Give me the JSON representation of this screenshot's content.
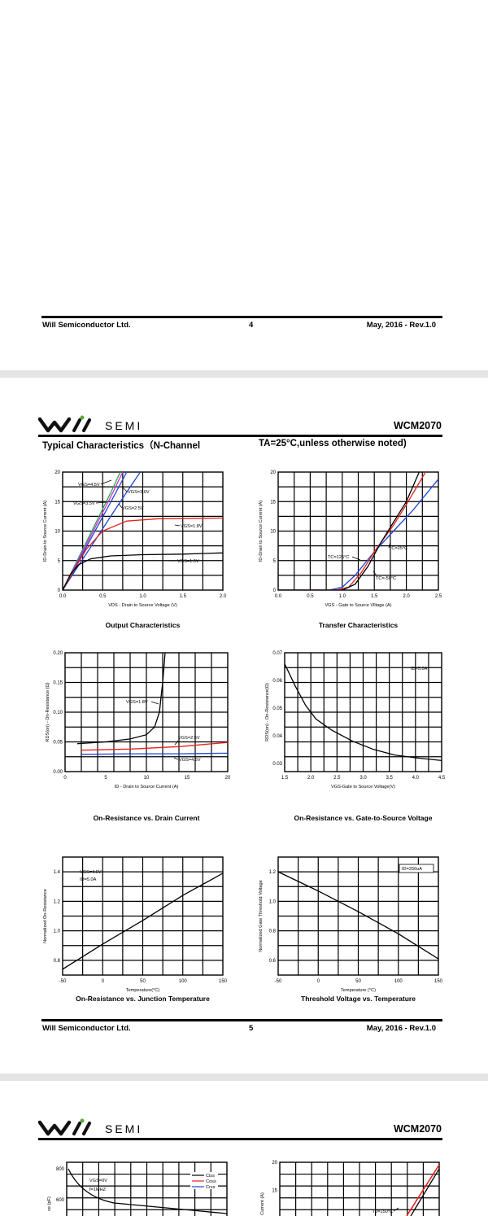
{
  "page4_footer": {
    "company": "Will Semiconductor Ltd.",
    "page": "4",
    "date": "May, 2016 - Rev.1.0"
  },
  "page5": {
    "logo_text": "SEMI",
    "part": "WCM2070",
    "section_title": "Typical Characteristics（N-Channel",
    "condition": "TA=25°C,unless otherwise noted)",
    "footer": {
      "company": "Will Semiconductor Ltd.",
      "page": "5",
      "date": "May, 2016 - Rev.1.0"
    }
  },
  "page6": {
    "logo_text": "SEMI",
    "part": "WCM2070"
  },
  "colors": {
    "black": "#000000",
    "red": "#e8221c",
    "blue": "#1f45d6",
    "green": "#2aa84a",
    "magenta": "#d02fd0"
  },
  "charts": {
    "output": {
      "caption": "Output Characteristics",
      "xlabel": "VDS - Drain to Source Voltage (V)",
      "ylabel": "ID-Drain to Source Current (A)",
      "xticks": [
        "0.0",
        "0.5",
        "1.0",
        "1.5",
        "2.0"
      ],
      "yticks": [
        "0",
        "5",
        "10",
        "15",
        "20"
      ],
      "labels": [
        "VGS=4.5V",
        "VGS=3.5V",
        "VGS=3.0V",
        "VGS=2.5V",
        "VGS=1.8V",
        "VGS=1.5V"
      ]
    },
    "transfer": {
      "caption": "Transfer Characteristics",
      "xlabel": "VGS - Gate to Source Vlltage (A)",
      "ylabel": "ID-Drain to Source Current (A)",
      "xticks": [
        "0.0",
        "0.5",
        "1.0",
        "1.5",
        "2.0",
        "2.5"
      ],
      "yticks": [
        "0",
        "5",
        "10",
        "15",
        "20"
      ],
      "labels": [
        "TC=125°C",
        "TC=25°C",
        "TC=-50°C"
      ]
    },
    "ron_id": {
      "caption": "On-Resistance vs. Drain Current",
      "xlabel": "ID - Drain to Source Current (A)",
      "ylabel": "RDS(on) - On-Resistance (Ω)",
      "xticks": [
        "0",
        "5",
        "10",
        "15",
        "20"
      ],
      "yticks": [
        "0.00",
        "0.05",
        "0.10",
        "0.15",
        "0.20"
      ],
      "labels": [
        "VGS=1.8V",
        "VGS=2.5V",
        "VGS=4.5V"
      ]
    },
    "ron_vgs": {
      "caption": "On-Resistance vs. Gate-to-Source Voltage",
      "xlabel": "VGS-Gate to Source Voltage(V)",
      "ylabel": "RDS(on) - On-Resistance(Ω)",
      "xticks": [
        "1.5",
        "2.0",
        "2.5",
        "3.0",
        "3.5",
        "4.0",
        "4.5"
      ],
      "yticks": [
        "0.07",
        "0.06",
        "0.05",
        "0.04",
        "0.03"
      ],
      "labels": [
        "ID=5.0A"
      ]
    },
    "ron_temp": {
      "caption": "On-Resistance vs. Junction Temperature",
      "xlabel": "Temperature(°C)",
      "ylabel": "Normalized On-Resistance",
      "xticks": [
        "-50",
        "0",
        "50",
        "100",
        "150"
      ],
      "yticks": [
        "1.4",
        "1.2",
        "1.0",
        "0.8"
      ],
      "labels": [
        "VGS=4.5V",
        "ID=5.0A"
      ]
    },
    "vth_temp": {
      "caption": "Threshold Voltage vs. Temperature",
      "xlabel": "Temperature (°C)",
      "ylabel": "Normalized Gate Threshold Voltage",
      "xticks": [
        "-50",
        "0",
        "50",
        "100",
        "150"
      ],
      "yticks": [
        "1.2",
        "1.0",
        "0.8",
        "0.6"
      ],
      "labels": [
        "ID=250uA"
      ]
    },
    "capacitance": {
      "ylabel": "ce (pF)",
      "yticks": [
        "800",
        "600"
      ],
      "labels": [
        "VGS=0V",
        "f=1MHZ"
      ],
      "legend": [
        "Ciss",
        "Coss",
        "Crss"
      ]
    },
    "partial_right": {
      "ylabel": "Current (A)",
      "yticks": [
        "20",
        "15"
      ],
      "labels": [
        "TJ=150°C"
      ]
    }
  },
  "chart_data": [
    {
      "type": "line",
      "title": "Output Characteristics",
      "xlabel": "VDS - Drain to Source Voltage (V)",
      "ylabel": "ID-Drain to Source Current (A)",
      "xlim": [
        0,
        2
      ],
      "ylim": [
        0,
        20
      ],
      "series": [
        {
          "name": "VGS=4.5V",
          "color": "#2aa84a",
          "x": [
            0,
            0.2,
            0.4,
            0.6,
            0.72
          ],
          "y": [
            0,
            5.5,
            11,
            16.5,
            20
          ]
        },
        {
          "name": "VGS=3.5V",
          "color": "#d02fd0",
          "x": [
            0,
            0.2,
            0.4,
            0.6,
            0.75
          ],
          "y": [
            0,
            5.2,
            10.5,
            15.8,
            20
          ]
        },
        {
          "name": "VGS=3.0V",
          "color": "#1f45d6",
          "x": [
            0,
            0.2,
            0.4,
            0.6,
            0.8
          ],
          "y": [
            0,
            4.9,
            9.9,
            14.9,
            20
          ]
        },
        {
          "name": "VGS=2.5V",
          "color": "#1f45d6",
          "x": [
            0,
            0.2,
            0.4,
            0.6,
            0.8,
            0.97
          ],
          "y": [
            0,
            4.2,
            8.3,
            12.5,
            16.6,
            20
          ]
        },
        {
          "name": "VGS=1.8V",
          "color": "#e8221c",
          "x": [
            0,
            0.15,
            0.3,
            0.5,
            0.8,
            1.2,
            2.0
          ],
          "y": [
            0,
            3.6,
            7,
            10,
            11.7,
            12.1,
            12.2
          ]
        },
        {
          "name": "VGS=1.5V",
          "color": "#000000",
          "x": [
            0,
            0.1,
            0.2,
            0.35,
            0.6,
            1.0,
            1.5,
            2.0
          ],
          "y": [
            0,
            2.7,
            4.3,
            5.3,
            5.8,
            6.0,
            6.1,
            6.3
          ]
        }
      ]
    },
    {
      "type": "line",
      "title": "Transfer Characteristics",
      "xlabel": "VGS - Gate to Source Vlltage (A)",
      "ylabel": "ID-Drain to Source Current (A)",
      "xlim": [
        0,
        2.5
      ],
      "ylim": [
        0,
        20
      ],
      "series": [
        {
          "name": "TC=125°C",
          "color": "#1f45d6",
          "x": [
            0,
            0.8,
            1.0,
            1.2,
            1.5,
            1.8,
            2.1,
            2.5
          ],
          "y": [
            0,
            0,
            0.5,
            2.5,
            6.5,
            10,
            13.5,
            18.8
          ]
        },
        {
          "name": "TC=25°C",
          "color": "#e8221c",
          "x": [
            0,
            0.9,
            1.1,
            1.3,
            1.5,
            1.8,
            2.0,
            2.3
          ],
          "y": [
            0,
            0,
            0.5,
            3,
            6.5,
            11,
            14.5,
            20
          ]
        },
        {
          "name": "TC=-50°C",
          "color": "#000000",
          "x": [
            0,
            1.0,
            1.2,
            1.4,
            1.6,
            1.8,
            2.0,
            2.2
          ],
          "y": [
            0,
            0,
            1,
            4,
            8,
            11.5,
            15,
            20
          ]
        }
      ]
    },
    {
      "type": "line",
      "title": "On-Resistance vs. Drain Current",
      "xlabel": "ID - Drain to Source Current (A)",
      "ylabel": "RDS(on) - On-Resistance (Ω)",
      "xlim": [
        0,
        20
      ],
      "ylim": [
        0,
        0.2
      ],
      "series": [
        {
          "name": "VGS=1.8V",
          "color": "#000000",
          "x": [
            1.5,
            5,
            8,
            10,
            11,
            11.6,
            12,
            12.3
          ],
          "y": [
            0.047,
            0.05,
            0.055,
            0.062,
            0.075,
            0.1,
            0.15,
            0.2
          ]
        },
        {
          "name": "VGS=2.5V",
          "color": "#e8221c",
          "x": [
            2,
            8,
            14,
            20
          ],
          "y": [
            0.036,
            0.038,
            0.042,
            0.049
          ]
        },
        {
          "name": "VGS=4.5V",
          "color": "#1f45d6",
          "x": [
            2,
            8,
            14,
            20
          ],
          "y": [
            0.029,
            0.03,
            0.03,
            0.031
          ]
        }
      ]
    },
    {
      "type": "line",
      "title": "On-Resistance vs. Gate-to-Source Voltage",
      "xlabel": "VGS-Gate to Source Voltage(V)",
      "ylabel": "RDS(on) - On-Resistance(Ω)",
      "xlim": [
        1.5,
        4.5
      ],
      "ylim": [
        0.027,
        0.07
      ],
      "series": [
        {
          "name": "ID=5.0A",
          "color": "#000000",
          "x": [
            1.5,
            1.7,
            1.9,
            2.1,
            2.4,
            2.8,
            3.2,
            3.6,
            4.0,
            4.5
          ],
          "y": [
            0.066,
            0.058,
            0.051,
            0.046,
            0.042,
            0.038,
            0.035,
            0.033,
            0.032,
            0.031
          ]
        }
      ]
    },
    {
      "type": "line",
      "title": "On-Resistance vs. Junction Temperature",
      "xlabel": "Temperature(°C)",
      "ylabel": "Normalized On-Resistance",
      "xlim": [
        -50,
        150
      ],
      "ylim": [
        0.7,
        1.5
      ],
      "series": [
        {
          "name": "VGS=4.5V, ID=5.0A",
          "color": "#000000",
          "x": [
            -50,
            0,
            50,
            100,
            150
          ],
          "y": [
            0.74,
            0.91,
            1.07,
            1.24,
            1.39
          ]
        }
      ]
    },
    {
      "type": "line",
      "title": "Threshold Voltage vs. Temperature",
      "xlabel": "Temperature (°C)",
      "ylabel": "Normalized Gate Threshold Voltage",
      "xlim": [
        -50,
        150
      ],
      "ylim": [
        0.5,
        1.3
      ],
      "series": [
        {
          "name": "ID=250uA",
          "color": "#000000",
          "x": [
            -50,
            0,
            50,
            100,
            150
          ],
          "y": [
            1.2,
            1.07,
            0.93,
            0.78,
            0.61
          ]
        }
      ]
    }
  ]
}
